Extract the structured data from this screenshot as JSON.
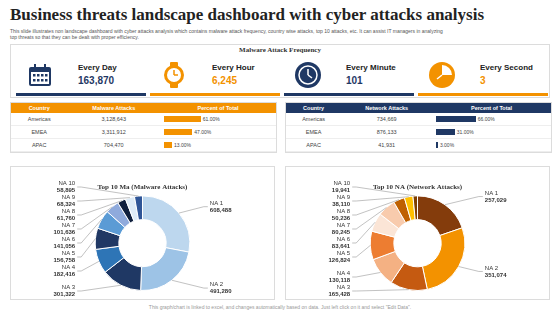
{
  "header": {
    "title": "Business threats landscape dashboard with cyber attacks analysis",
    "subtitle": "This slide illustrates non landscape dashboard with cyber attacks analysis which contains malware attack frequency, country wise attacks, top 10 attacks, etc. It can assist IT managers in analyzing top threats so that they can be dealt with proper efficiency."
  },
  "frequency": {
    "title": "Malware Attack Frequency",
    "cards": [
      {
        "label": "Every Day",
        "value": "163,870",
        "color": "#1f3864"
      },
      {
        "label": "Every Hour",
        "value": "6,245",
        "color": "#f39200"
      },
      {
        "label": "Every Minute",
        "value": "101",
        "color": "#1f3864"
      },
      {
        "label": "Every Second",
        "value": "3",
        "color": "#f39200"
      }
    ]
  },
  "tables": [
    {
      "columns": [
        "Country",
        "Malware Attacks",
        "Percent of Total"
      ],
      "color": "#f39200",
      "rows": [
        {
          "country": "Americas",
          "attacks": "3,128,643",
          "percent": 61,
          "percent_label": "61.00%"
        },
        {
          "country": "EMEA",
          "attacks": "3,311,912",
          "percent": 47,
          "percent_label": "47.00%"
        },
        {
          "country": "APAC",
          "attacks": "704,470",
          "percent": 13,
          "percent_label": "13.00%"
        }
      ]
    },
    {
      "columns": [
        "Country",
        "Network Attacks",
        "Percent of Total"
      ],
      "color": "#1f3864",
      "rows": [
        {
          "country": "Americas",
          "attacks": "734,669",
          "percent": 66,
          "percent_label": "66.00%"
        },
        {
          "country": "EMEA",
          "attacks": "876,133",
          "percent": 31,
          "percent_label": "31.00%"
        },
        {
          "country": "APAC",
          "attacks": "41,931",
          "percent": 3,
          "percent_label": "3.00%"
        }
      ]
    }
  ],
  "chart_data": [
    {
      "type": "doughnut",
      "title": "Top 10 Ma (Malware Attacks)",
      "categories": [
        "NA 1",
        "NA 2",
        "NA 3",
        "NA 4",
        "NA 5",
        "NA 6",
        "NA 7",
        "NA 8",
        "NA 9",
        "NA 10"
      ],
      "values": [
        608488,
        491280,
        301322,
        182416,
        156758,
        141056,
        101636,
        61760,
        68324,
        58895
      ],
      "value_labels": [
        "608,488",
        "491,280",
        "301,322",
        "182,416",
        "156,758",
        "141,056",
        "101,636",
        "61,760",
        "68,324",
        "58,895"
      ],
      "colors": [
        "#bdd7ee",
        "#9dc3e6",
        "#1f3864",
        "#2e75b6",
        "#203864",
        "#5b9bd5",
        "#8faadc",
        "#0f1f3d",
        "#deebf7",
        "#2f5597"
      ],
      "data_labels": true
    },
    {
      "type": "doughnut",
      "title": "Top 10 NA (Network Attacks)",
      "categories": [
        "NA 1",
        "NA 2",
        "NA 3",
        "NA 4",
        "NA 5",
        "NA 6",
        "NA 7",
        "NA 8",
        "NA 9",
        "NA 10"
      ],
      "values": [
        257029,
        351074,
        165428,
        130118,
        126824,
        83641,
        80245,
        50236,
        38110,
        19941
      ],
      "value_labels": [
        "257,029",
        "351,074",
        "165,428",
        "130,118",
        "126,824",
        "83,641",
        "80,245",
        "50,236",
        "38,110",
        "19,941"
      ],
      "colors": [
        "#843c0c",
        "#f39200",
        "#c55a11",
        "#f4b183",
        "#ed7d31",
        "#fbe5d6",
        "#f8cbad",
        "#bf6000",
        "#ffc000",
        "#7f3f00"
      ],
      "data_labels": true
    }
  ],
  "footer": "This graph/chart is linked to excel, and changes automatically based on data. Just left click on it and select \"Edit Data\"."
}
